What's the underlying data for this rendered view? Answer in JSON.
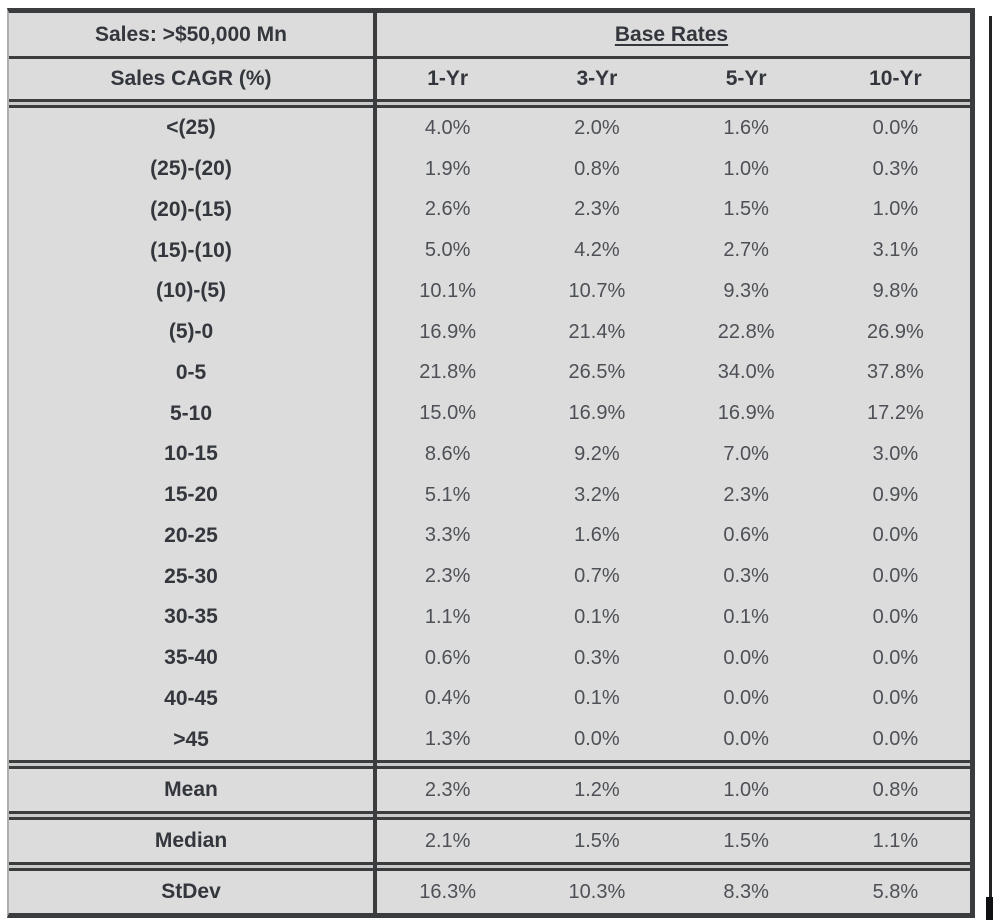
{
  "palette": {
    "page_bg": "#ffffff",
    "table_bg": "#dbdcdb",
    "border_dark": "#3a3c3e",
    "label_text": "#33363c",
    "value_text": "#4d5056"
  },
  "table": {
    "title_cell": "Sales: >$50,000 Mn",
    "group_header": "Base Rates",
    "row_header": "Sales CAGR (%)",
    "columns": [
      "1-Yr",
      "3-Yr",
      "5-Yr",
      "10-Yr"
    ],
    "rows": [
      {
        "label": "<(25)",
        "values": [
          "4.0%",
          "2.0%",
          "1.6%",
          "0.0%"
        ]
      },
      {
        "label": "(25)-(20)",
        "values": [
          "1.9%",
          "0.8%",
          "1.0%",
          "0.3%"
        ]
      },
      {
        "label": "(20)-(15)",
        "values": [
          "2.6%",
          "2.3%",
          "1.5%",
          "1.0%"
        ]
      },
      {
        "label": "(15)-(10)",
        "values": [
          "5.0%",
          "4.2%",
          "2.7%",
          "3.1%"
        ]
      },
      {
        "label": "(10)-(5)",
        "values": [
          "10.1%",
          "10.7%",
          "9.3%",
          "9.8%"
        ]
      },
      {
        "label": "(5)-0",
        "values": [
          "16.9%",
          "21.4%",
          "22.8%",
          "26.9%"
        ]
      },
      {
        "label": "0-5",
        "values": [
          "21.8%",
          "26.5%",
          "34.0%",
          "37.8%"
        ]
      },
      {
        "label": "5-10",
        "values": [
          "15.0%",
          "16.9%",
          "16.9%",
          "17.2%"
        ]
      },
      {
        "label": "10-15",
        "values": [
          "8.6%",
          "9.2%",
          "7.0%",
          "3.0%"
        ]
      },
      {
        "label": "15-20",
        "values": [
          "5.1%",
          "3.2%",
          "2.3%",
          "0.9%"
        ]
      },
      {
        "label": "20-25",
        "values": [
          "3.3%",
          "1.6%",
          "0.6%",
          "0.0%"
        ]
      },
      {
        "label": "25-30",
        "values": [
          "2.3%",
          "0.7%",
          "0.3%",
          "0.0%"
        ]
      },
      {
        "label": "30-35",
        "values": [
          "1.1%",
          "0.1%",
          "0.1%",
          "0.0%"
        ]
      },
      {
        "label": "35-40",
        "values": [
          "0.6%",
          "0.3%",
          "0.0%",
          "0.0%"
        ]
      },
      {
        "label": "40-45",
        "values": [
          "0.4%",
          "0.1%",
          "0.0%",
          "0.0%"
        ]
      },
      {
        "label": ">45",
        "values": [
          "1.3%",
          "0.0%",
          "0.0%",
          "0.0%"
        ]
      }
    ],
    "summary": [
      {
        "label": "Mean",
        "values": [
          "2.3%",
          "1.2%",
          "1.0%",
          "0.8%"
        ]
      },
      {
        "label": "Median",
        "values": [
          "2.1%",
          "1.5%",
          "1.5%",
          "1.1%"
        ]
      },
      {
        "label": "StDev",
        "values": [
          "16.3%",
          "10.3%",
          "8.3%",
          "5.8%"
        ]
      }
    ]
  }
}
